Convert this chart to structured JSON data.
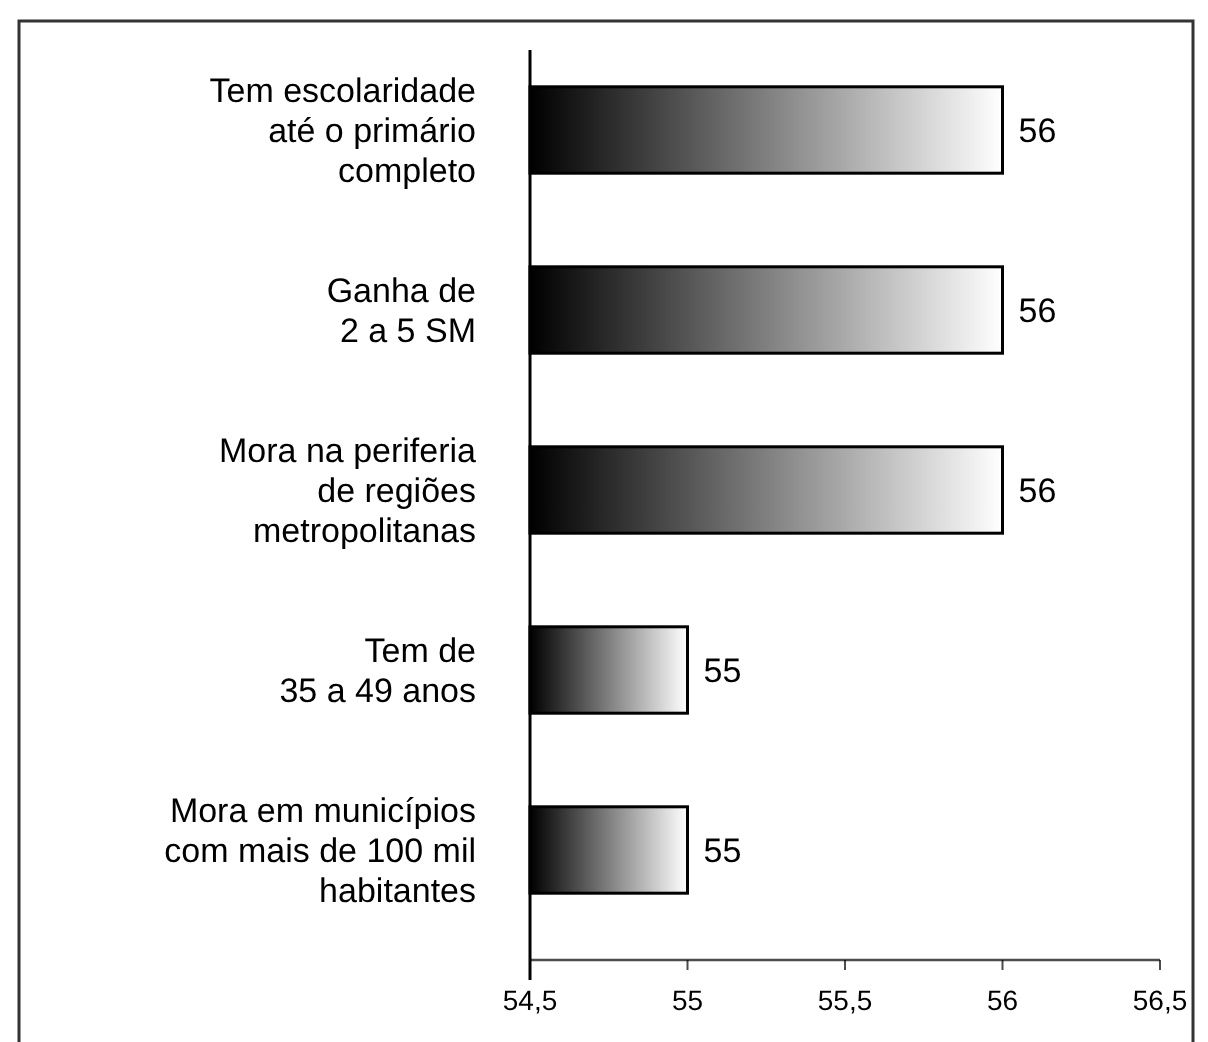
{
  "chart_data": {
    "type": "bar",
    "orientation": "horizontal",
    "categories": [
      "Tem escolaridade\naté o primário\ncompleto",
      "Ganha de\n2 a 5 SM",
      "Mora na periferia\nde regiões\nmetropolitanas",
      "Tem de\n35 a 49 anos",
      "Mora em municípios\ncom mais de 100 mil\nhabitantes"
    ],
    "values": [
      56,
      56,
      56,
      55,
      55
    ],
    "color": "#000000",
    "xlim": [
      54.5,
      56.5
    ],
    "xticks": [
      {
        "value": 54.5,
        "label": "54,5"
      },
      {
        "value": 55,
        "label": "55"
      },
      {
        "value": 55.5,
        "label": "55,5"
      },
      {
        "value": 56,
        "label": "56"
      },
      {
        "value": 56.5,
        "label": "56,5"
      }
    ],
    "data_labels": true
  }
}
